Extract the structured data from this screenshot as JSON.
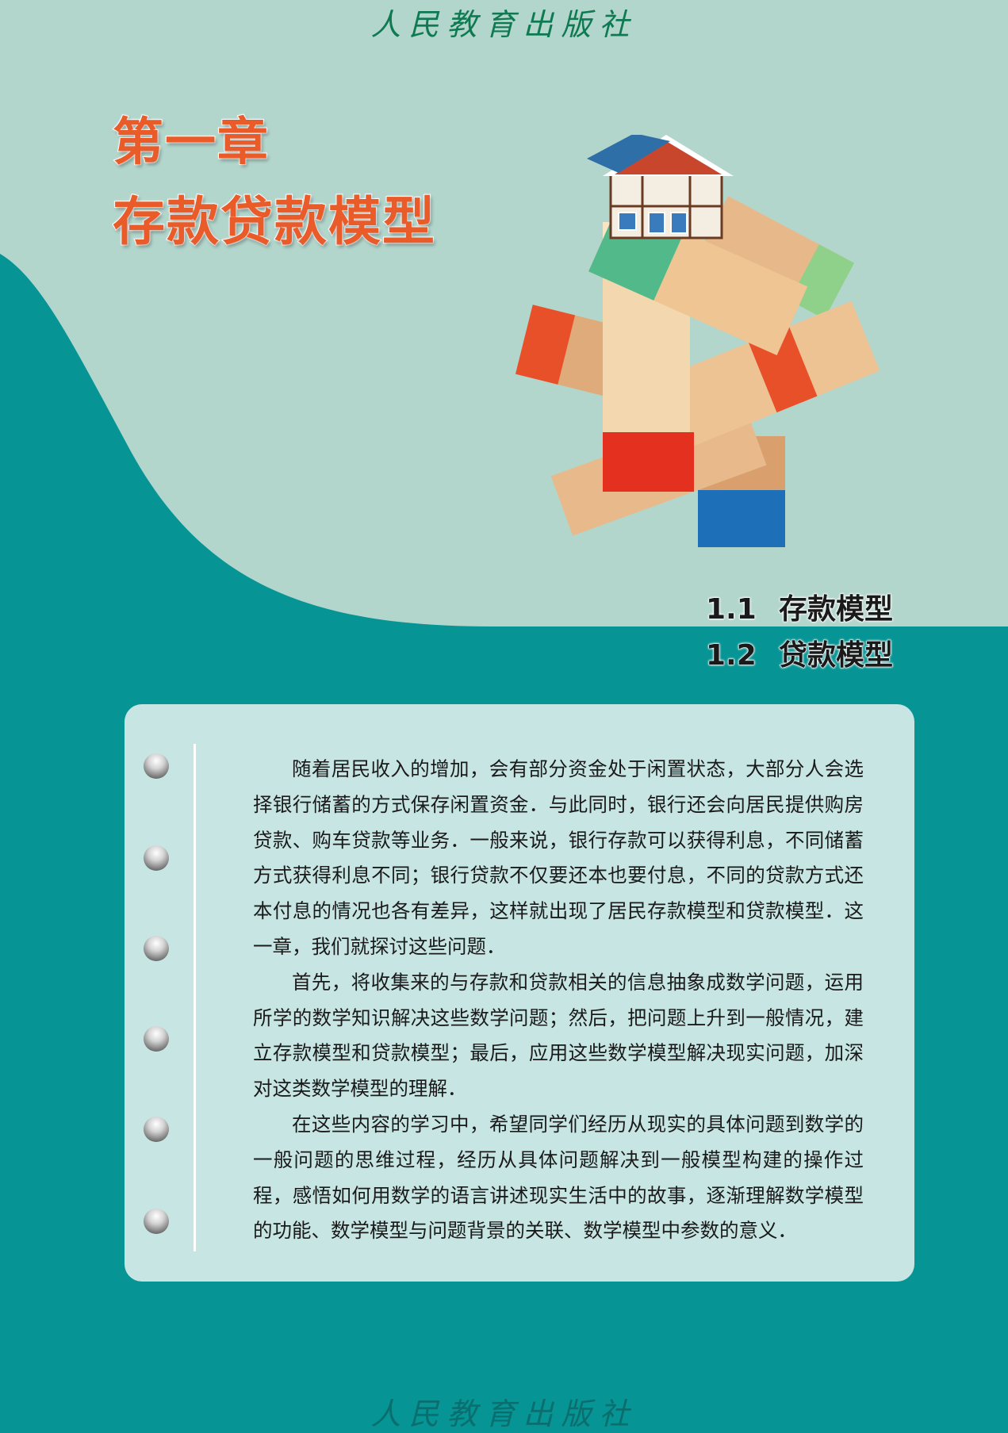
{
  "publisher": "人民教育出版社",
  "chapter": {
    "number": "第一章",
    "title": "存款贷款模型"
  },
  "toc": [
    {
      "num": "1.1",
      "title": "存款模型"
    },
    {
      "num": "1.2",
      "title": "贷款模型"
    }
  ],
  "intro": {
    "paragraphs": [
      "随着居民收入的增加，会有部分资金处于闲置状态，大部分人会选择银行储蓄的方式保存闲置资金．与此同时，银行还会向居民提供购房贷款、购车贷款等业务．一般来说，银行存款可以获得利息，不同储蓄方式获得利息不同；银行贷款不仅要还本也要付息，不同的贷款方式还本付息的情况也各有差异，这样就出现了居民存款模型和贷款模型．这一章，我们就探讨这些问题．",
      "首先，将收集来的与存款和贷款相关的信息抽象成数学问题，运用所学的数学知识解决这些数学问题；然后，把问题上升到一般情况，建立存款模型和贷款模型；最后，应用这些数学模型解决现实问题，加深对这类数学模型的理解．",
      "在这些内容的学习中，希望同学们经历从现实的具体问题到数学的一般问题的思维过程，经历从具体问题解决到一般模型构建的操作过程，感悟如何用数学的语言讲述现实生活中的故事，逐渐理解数学模型的功能、数学模型与问题背景的关联、数学模型中参数的意义．"
    ]
  },
  "colors": {
    "background_teal": "#069494",
    "light_mint": "#b2d6cc",
    "card": "#c7e6e3",
    "title_orange": "#e95c2a"
  }
}
